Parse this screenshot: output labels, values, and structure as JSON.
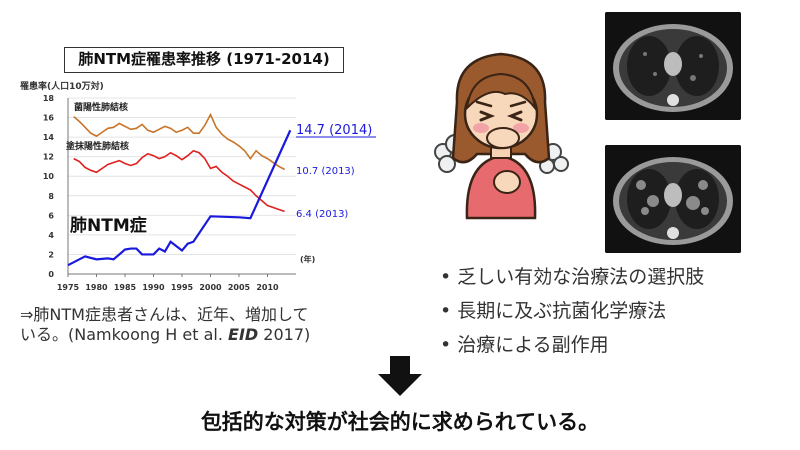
{
  "chart_data": {
    "type": "line",
    "title": "肺NTM症罹患率推移 (1971-2014)",
    "ylabel": "罹患率(人口10万対)",
    "xlabel": "(年)",
    "ylim": [
      0,
      18
    ],
    "yticks": [
      0,
      2,
      4,
      6,
      8,
      10,
      12,
      14,
      16,
      18
    ],
    "xticks": [
      1975,
      1980,
      1985,
      1990,
      1995,
      2000,
      2005,
      2010
    ],
    "xlim": [
      1975,
      2015
    ],
    "grid": true,
    "series": [
      {
        "name": "菌陽性肺結核",
        "color": "#c8752a",
        "x": [
          1976,
          1977,
          1978,
          1979,
          1980,
          1981,
          1982,
          1983,
          1984,
          1985,
          1986,
          1987,
          1988,
          1989,
          1990,
          1991,
          1992,
          1993,
          1994,
          1995,
          1996,
          1997,
          1998,
          1999,
          2000,
          2001,
          2002,
          2003,
          2004,
          2005,
          2006,
          2007,
          2008,
          2009,
          2010,
          2011,
          2012,
          2013
        ],
        "values": [
          16.1,
          15.6,
          15.0,
          14.4,
          14.1,
          14.5,
          14.9,
          15.0,
          15.4,
          15.1,
          14.8,
          14.9,
          15.3,
          14.7,
          14.5,
          14.8,
          15.1,
          14.9,
          14.5,
          14.7,
          15.0,
          14.4,
          14.4,
          15.2,
          16.3,
          15.0,
          14.3,
          13.8,
          13.5,
          13.1,
          12.6,
          11.8,
          12.6,
          12.1,
          11.8,
          11.4,
          11.0,
          10.7
        ]
      },
      {
        "name": "塗抹陽性肺結核",
        "color": "#e0201e",
        "x": [
          1976,
          1977,
          1978,
          1979,
          1980,
          1981,
          1982,
          1983,
          1984,
          1985,
          1986,
          1987,
          1988,
          1989,
          1990,
          1991,
          1992,
          1993,
          1994,
          1995,
          1996,
          1997,
          1998,
          1999,
          2000,
          2001,
          2002,
          2003,
          2004,
          2005,
          2006,
          2007,
          2008,
          2009,
          2010,
          2011,
          2012,
          2013
        ],
        "values": [
          11.8,
          11.5,
          10.9,
          10.6,
          10.4,
          10.8,
          11.2,
          11.4,
          11.6,
          11.3,
          11.1,
          11.3,
          11.9,
          12.3,
          12.1,
          11.8,
          12.0,
          12.4,
          12.1,
          11.7,
          12.1,
          12.6,
          12.4,
          11.8,
          10.8,
          11.0,
          10.4,
          10.0,
          9.5,
          9.2,
          8.9,
          8.6,
          8.0,
          7.5,
          7.0,
          6.8,
          6.6,
          6.4
        ]
      },
      {
        "name": "肺NTM症",
        "color": "#1a1add",
        "x": [
          1975,
          1977,
          1978,
          1980,
          1982,
          1983,
          1985,
          1986,
          1987,
          1988,
          1990,
          1991,
          1992,
          1993,
          1995,
          1996,
          1997,
          2000,
          2005,
          2007,
          2014
        ],
        "values": [
          0.9,
          1.5,
          1.8,
          1.5,
          1.6,
          1.5,
          2.5,
          2.6,
          2.6,
          2.0,
          2.0,
          2.6,
          2.3,
          3.3,
          2.4,
          3.1,
          3.3,
          5.9,
          5.8,
          5.7,
          14.7
        ]
      }
    ],
    "annotations": [
      "14.7 (2014)",
      "10.7 (2013)",
      "6.4 (2013)"
    ]
  },
  "caption": {
    "line1": "⇒肺NTM症患者さんは、近年、増加して",
    "line2_pre": "いる。(Namkoong H et al. ",
    "line2_emph": "EID",
    "line2_post": " 2017)"
  },
  "bullets": [
    "乏しい有効な治療法の選択肢",
    "長期に及ぶ抗菌化学療法",
    "治療による副作用"
  ],
  "conclusion": "包括的な対策が社会的に求められている。"
}
